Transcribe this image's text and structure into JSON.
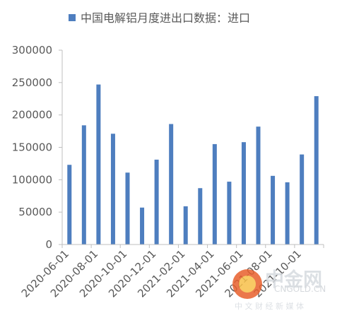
{
  "chart_data": {
    "type": "bar",
    "legend": {
      "label": "中国电解铝月度进出口数据：进口",
      "position": "top",
      "color": "#4e7ebf"
    },
    "series": [
      {
        "name": "中国电解铝月度进出口数据：进口",
        "color": "#4e7ebf",
        "values": [
          123000,
          184000,
          247000,
          171000,
          111000,
          57000,
          131000,
          186000,
          59000,
          87000,
          155000,
          97000,
          158000,
          182000,
          106000,
          96000,
          139000,
          229000
        ]
      }
    ],
    "x": [
      "2020-06-01",
      "2020-07-01",
      "2020-08-01",
      "2020-09-01",
      "2020-10-01",
      "2020-11-01",
      "2020-12-01",
      "2021-01-01",
      "2021-02-01",
      "2021-03-01",
      "2021-04-01",
      "2021-05-01",
      "2021-06-01",
      "2021-07-01",
      "2021-08-01",
      "2021-09-01",
      "2021-10-01",
      "2021-11-01"
    ],
    "tick_labels": [
      "2020-06-01",
      "2020-08-01",
      "2020-10-01",
      "2020-12-01",
      "2021-02-01",
      "2021-04-01",
      "2021-06-01",
      "2021-08-01",
      "2021-10-01"
    ],
    "y_ticks": [
      "0",
      "50000",
      "100000",
      "150000",
      "200000",
      "250000",
      "300000"
    ],
    "ylim": [
      0,
      300000
    ],
    "grid": false
  },
  "watermark": {
    "brand": "中金网",
    "url": "CNGOLD.CN",
    "slogan": "中 文 财 经 新 媒 体"
  }
}
